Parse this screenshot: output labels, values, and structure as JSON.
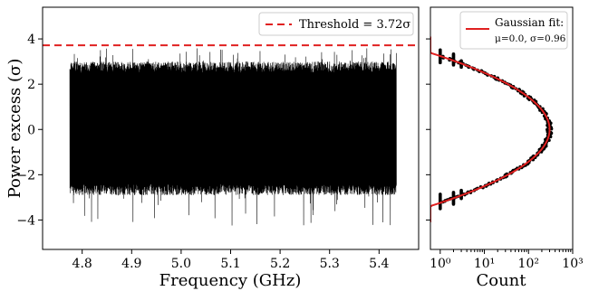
{
  "chart_data": [
    {
      "type": "line",
      "xlabel": "Frequency (GHz)",
      "ylabel": "Power excess (σ)",
      "xlim": [
        4.72,
        5.48
      ],
      "ylim": [
        -5.3,
        5.4
      ],
      "xticks": [
        "4.8",
        "4.9",
        "5.0",
        "5.1",
        "5.2",
        "5.3",
        "5.4"
      ],
      "yticks": [
        "−4",
        "−2",
        "0",
        "2",
        "4"
      ],
      "x_range": [
        4.775,
        5.435
      ],
      "series": [
        {
          "kind": "dense-noise",
          "typical_band": [
            -2.9,
            3.0
          ],
          "max": 3.6,
          "min": -4.3,
          "color": "#000000"
        }
      ],
      "threshold": {
        "y": 3.72,
        "color": "#e02020",
        "label": "Threshold = 3.72σ"
      },
      "legend": "top-right"
    },
    {
      "type": "scatter",
      "xlabel": "Count",
      "xscale": "log",
      "xlim": [
        0.6,
        1000
      ],
      "ylim": [
        -5.3,
        5.4
      ],
      "xticks": [
        "10⁰",
        "10¹",
        "10²",
        "10³"
      ],
      "points_color": "#000000",
      "fit": {
        "kind": "gaussian",
        "mu": 0.0,
        "sigma": 0.96,
        "peak": 300,
        "color": "#e02020",
        "label_line1": "Gaussian fit:",
        "label_line2": "μ=0.0, σ=0.96"
      },
      "legend": "top-right"
    }
  ]
}
